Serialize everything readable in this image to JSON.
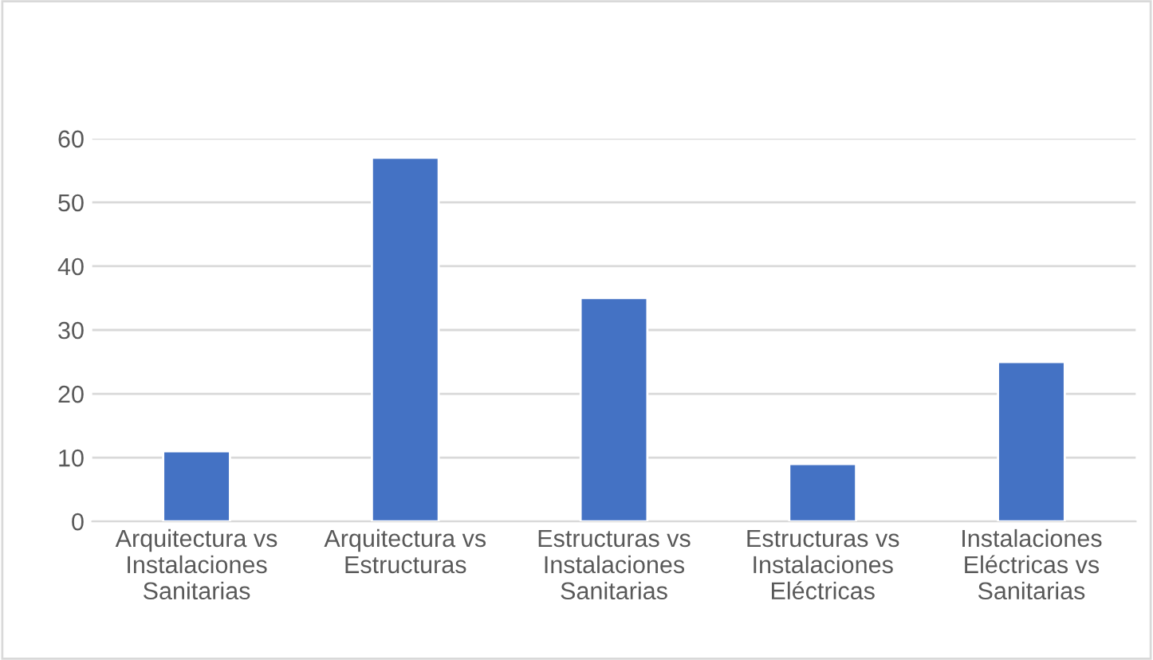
{
  "chart_data": {
    "type": "bar",
    "categories": [
      "Arquitectura vs Instalaciones Sanitarias",
      "Arquitectura vs Estructuras",
      "Estructuras vs Instalaciones Sanitarias",
      "Estructuras vs Instalaciones Eléctricas",
      "Instalaciones Eléctricas vs Sanitarias"
    ],
    "values": [
      11,
      57,
      35,
      9,
      25
    ],
    "color": "#4472c4",
    "ylim": [
      0,
      60
    ],
    "yticks": [
      0,
      10,
      20,
      30,
      40,
      50,
      60
    ],
    "grid": "y"
  }
}
